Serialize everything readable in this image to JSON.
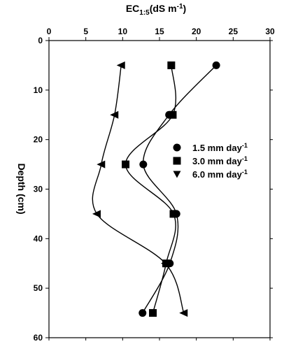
{
  "chart_data": {
    "type": "line",
    "orientation": "depth-profile",
    "xlabel": {
      "main": "EC",
      "sub": "1:5",
      "rest": "(dS m",
      "sup": "-1",
      "close": ")"
    },
    "ylabel": "Depth (cm)",
    "xlim": [
      0,
      30
    ],
    "ylim": [
      0,
      60
    ],
    "y_inverted": true,
    "x_axis_position": "top",
    "x_ticks": [
      0,
      5,
      10,
      15,
      20,
      25,
      30
    ],
    "y_ticks": [
      0,
      10,
      20,
      30,
      40,
      50,
      60
    ],
    "x_tick_labels": [
      "0",
      "5",
      "10",
      "15",
      "20",
      "25",
      "30"
    ],
    "y_tick_labels": [
      "0",
      "10",
      "20",
      "30",
      "40",
      "50",
      "60"
    ],
    "grid": false,
    "legend_position": "right-center",
    "depth": [
      5,
      15,
      25,
      35,
      45,
      55
    ],
    "series": [
      {
        "legend_main": "1.5 mm day",
        "legend_sup": "-1",
        "marker": "circle",
        "ec": [
          22.7,
          16.3,
          12.8,
          17.3,
          16.4,
          12.7
        ]
      },
      {
        "legend_main": "3.0 mm day",
        "legend_sup": "-1",
        "marker": "square",
        "ec": [
          16.6,
          16.8,
          10.4,
          16.9,
          15.9,
          14.1
        ]
      },
      {
        "legend_main": "6.0 mm day",
        "legend_sup": "-1",
        "marker": "triangle-left",
        "ec": [
          9.8,
          8.9,
          7.1,
          6.5,
          15.8,
          18.3
        ]
      }
    ],
    "color": "#000000"
  }
}
